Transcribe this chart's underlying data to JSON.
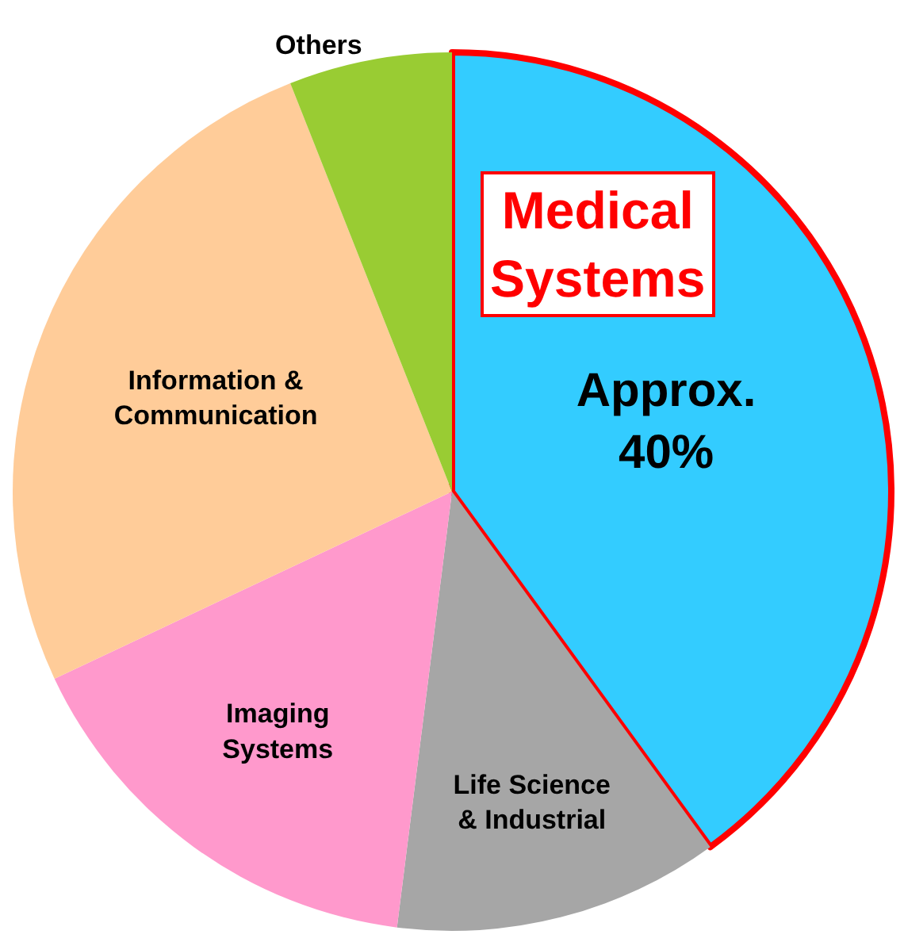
{
  "chart_data": {
    "type": "pie",
    "categories": [
      "Medical Systems",
      "Life Science & Industrial",
      "Imaging Systems",
      "Information & Communication",
      "Others"
    ],
    "values": [
      40,
      12,
      16,
      26,
      6
    ],
    "colors": [
      "#33ccff",
      "#a6a6a6",
      "#ff99cc",
      "#ffcc99",
      "#99cc33"
    ],
    "value_labels": [
      "Approx. 40%",
      null,
      null,
      null,
      null
    ],
    "legend": false
  }
}
